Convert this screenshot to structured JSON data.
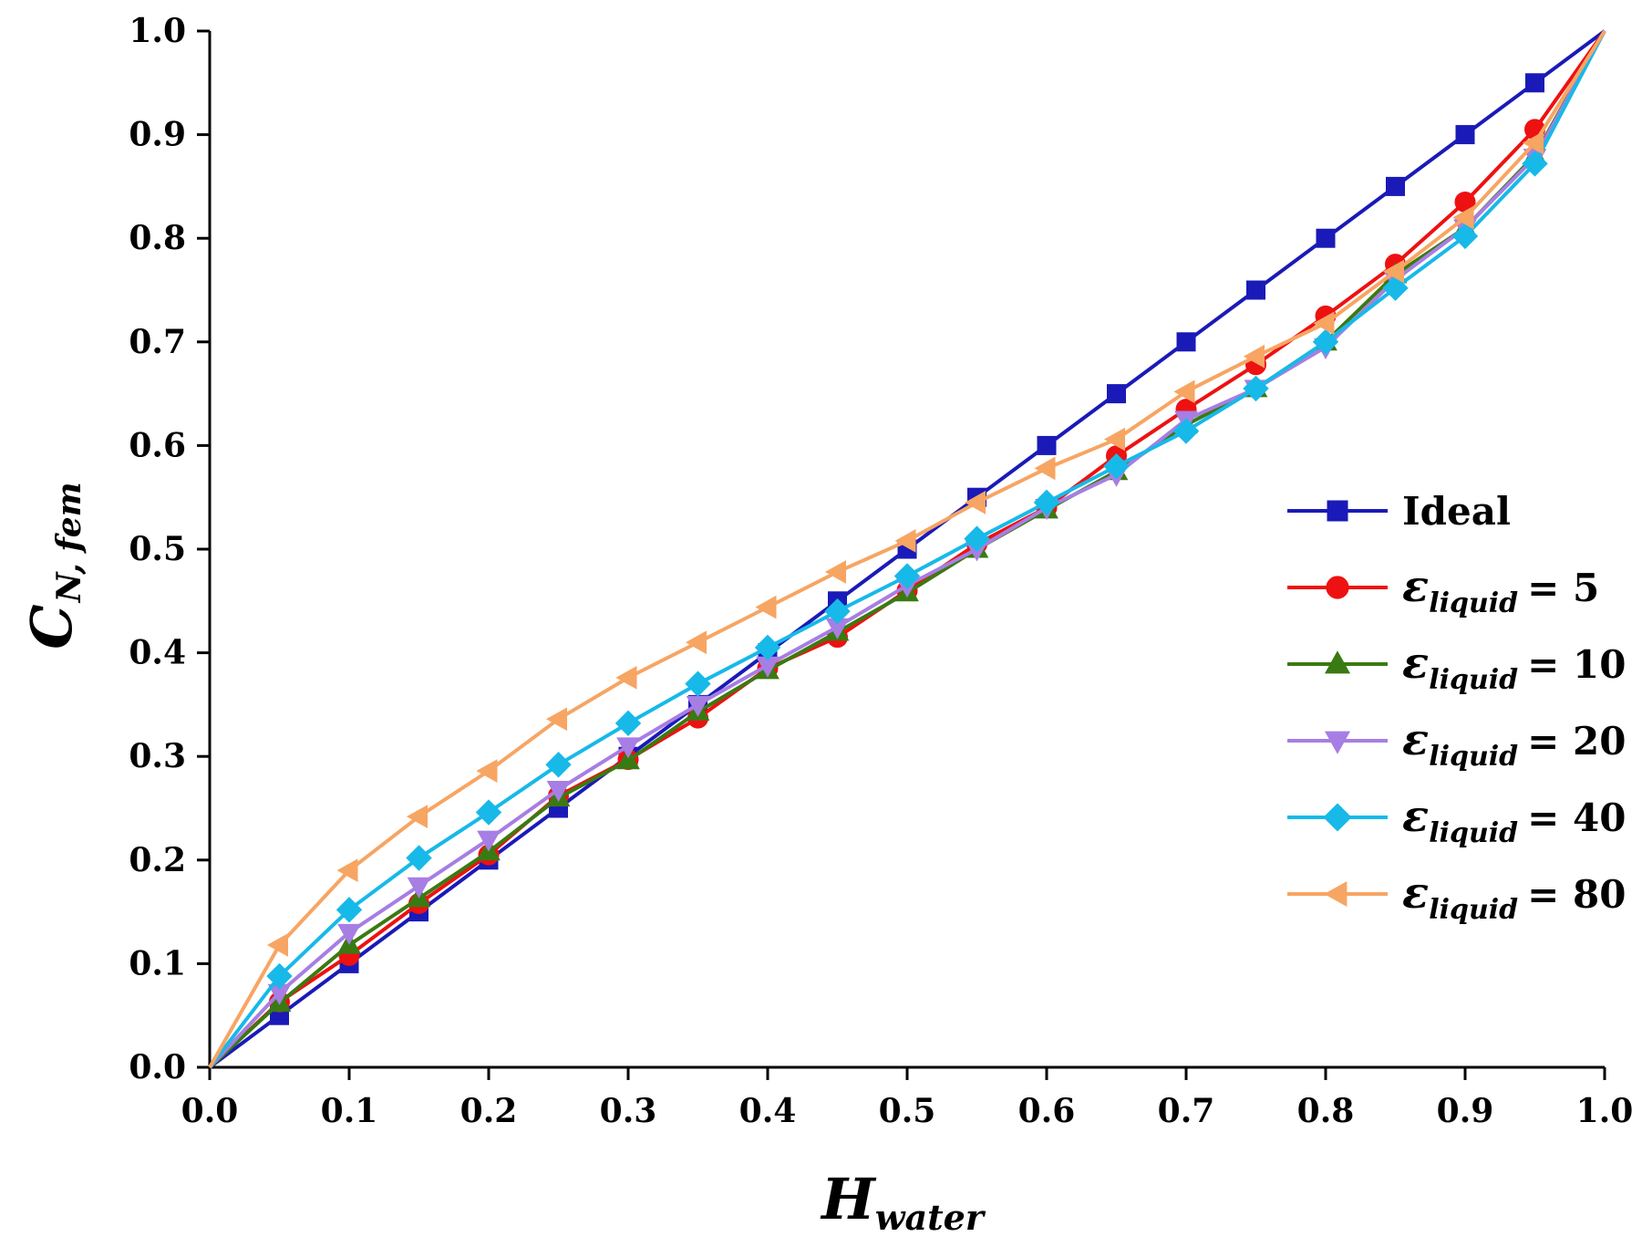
{
  "chart_data": {
    "type": "line",
    "title": "",
    "xlabel": {
      "main": "H",
      "sub": "water"
    },
    "ylabel": {
      "main": "C",
      "sub": "N, fem"
    },
    "xlim": [
      0.0,
      1.0
    ],
    "ylim": [
      0.0,
      1.0
    ],
    "grid": false,
    "legend_position": "right",
    "x_ticks": [
      "0.0",
      "0.1",
      "0.2",
      "0.3",
      "0.4",
      "0.5",
      "0.6",
      "0.7",
      "0.8",
      "0.9",
      "1.0"
    ],
    "y_ticks": [
      "0.0",
      "0.1",
      "0.2",
      "0.3",
      "0.4",
      "0.5",
      "0.6",
      "0.7",
      "0.8",
      "0.9",
      "1.0"
    ],
    "x": [
      0.0,
      0.05,
      0.1,
      0.15,
      0.2,
      0.25,
      0.3,
      0.35,
      0.4,
      0.45,
      0.5,
      0.55,
      0.6,
      0.65,
      0.7,
      0.75,
      0.8,
      0.85,
      0.9,
      0.95,
      1.0
    ],
    "series": [
      {
        "name": "Ideal",
        "legend_label": "Ideal",
        "color": "#1a1ab8",
        "marker": "square",
        "values": [
          0.0,
          0.05,
          0.1,
          0.15,
          0.2,
          0.25,
          0.3,
          0.35,
          0.4,
          0.45,
          0.5,
          0.55,
          0.6,
          0.65,
          0.7,
          0.75,
          0.8,
          0.85,
          0.9,
          0.95,
          1.0
        ]
      },
      {
        "name": "eps5",
        "legend_symbol": "ε",
        "legend_sub": "liquid",
        "legend_value": "= 5",
        "color": "#ee1111",
        "marker": "circle",
        "values": [
          0.0,
          0.063,
          0.108,
          0.158,
          0.205,
          0.262,
          0.297,
          0.337,
          0.385,
          0.415,
          0.46,
          0.505,
          0.54,
          0.59,
          0.635,
          0.678,
          0.725,
          0.775,
          0.835,
          0.905,
          1.0
        ]
      },
      {
        "name": "eps10",
        "legend_symbol": "ε",
        "legend_sub": "liquid",
        "legend_value": "= 10",
        "color": "#3a7a12",
        "marker": "triangle-up",
        "values": [
          0.0,
          0.062,
          0.118,
          0.163,
          0.208,
          0.26,
          0.296,
          0.343,
          0.383,
          0.42,
          0.458,
          0.5,
          0.538,
          0.575,
          0.62,
          0.655,
          0.7,
          0.765,
          0.81,
          0.88,
          1.0
        ]
      },
      {
        "name": "eps20",
        "legend_symbol": "ε",
        "legend_sub": "liquid",
        "legend_value": "= 20",
        "color": "#a77ee3",
        "marker": "triangle-down",
        "values": [
          0.0,
          0.072,
          0.13,
          0.175,
          0.22,
          0.268,
          0.31,
          0.35,
          0.388,
          0.425,
          0.465,
          0.5,
          0.54,
          0.572,
          0.625,
          0.655,
          0.695,
          0.76,
          0.81,
          0.878,
          1.0
        ]
      },
      {
        "name": "eps40",
        "legend_symbol": "ε",
        "legend_sub": "liquid",
        "legend_value": "= 40",
        "color": "#17b9e8",
        "marker": "diamond",
        "values": [
          0.0,
          0.088,
          0.152,
          0.202,
          0.246,
          0.292,
          0.332,
          0.37,
          0.405,
          0.44,
          0.474,
          0.51,
          0.545,
          0.58,
          0.614,
          0.655,
          0.7,
          0.752,
          0.802,
          0.872,
          1.0
        ]
      },
      {
        "name": "eps80",
        "legend_symbol": "ε",
        "legend_sub": "liquid",
        "legend_value": "= 80",
        "color": "#f7a563",
        "marker": "triangle-left",
        "values": [
          0.0,
          0.118,
          0.19,
          0.242,
          0.286,
          0.336,
          0.376,
          0.41,
          0.444,
          0.478,
          0.508,
          0.545,
          0.578,
          0.606,
          0.652,
          0.686,
          0.718,
          0.768,
          0.82,
          0.892,
          1.0
        ]
      }
    ]
  }
}
